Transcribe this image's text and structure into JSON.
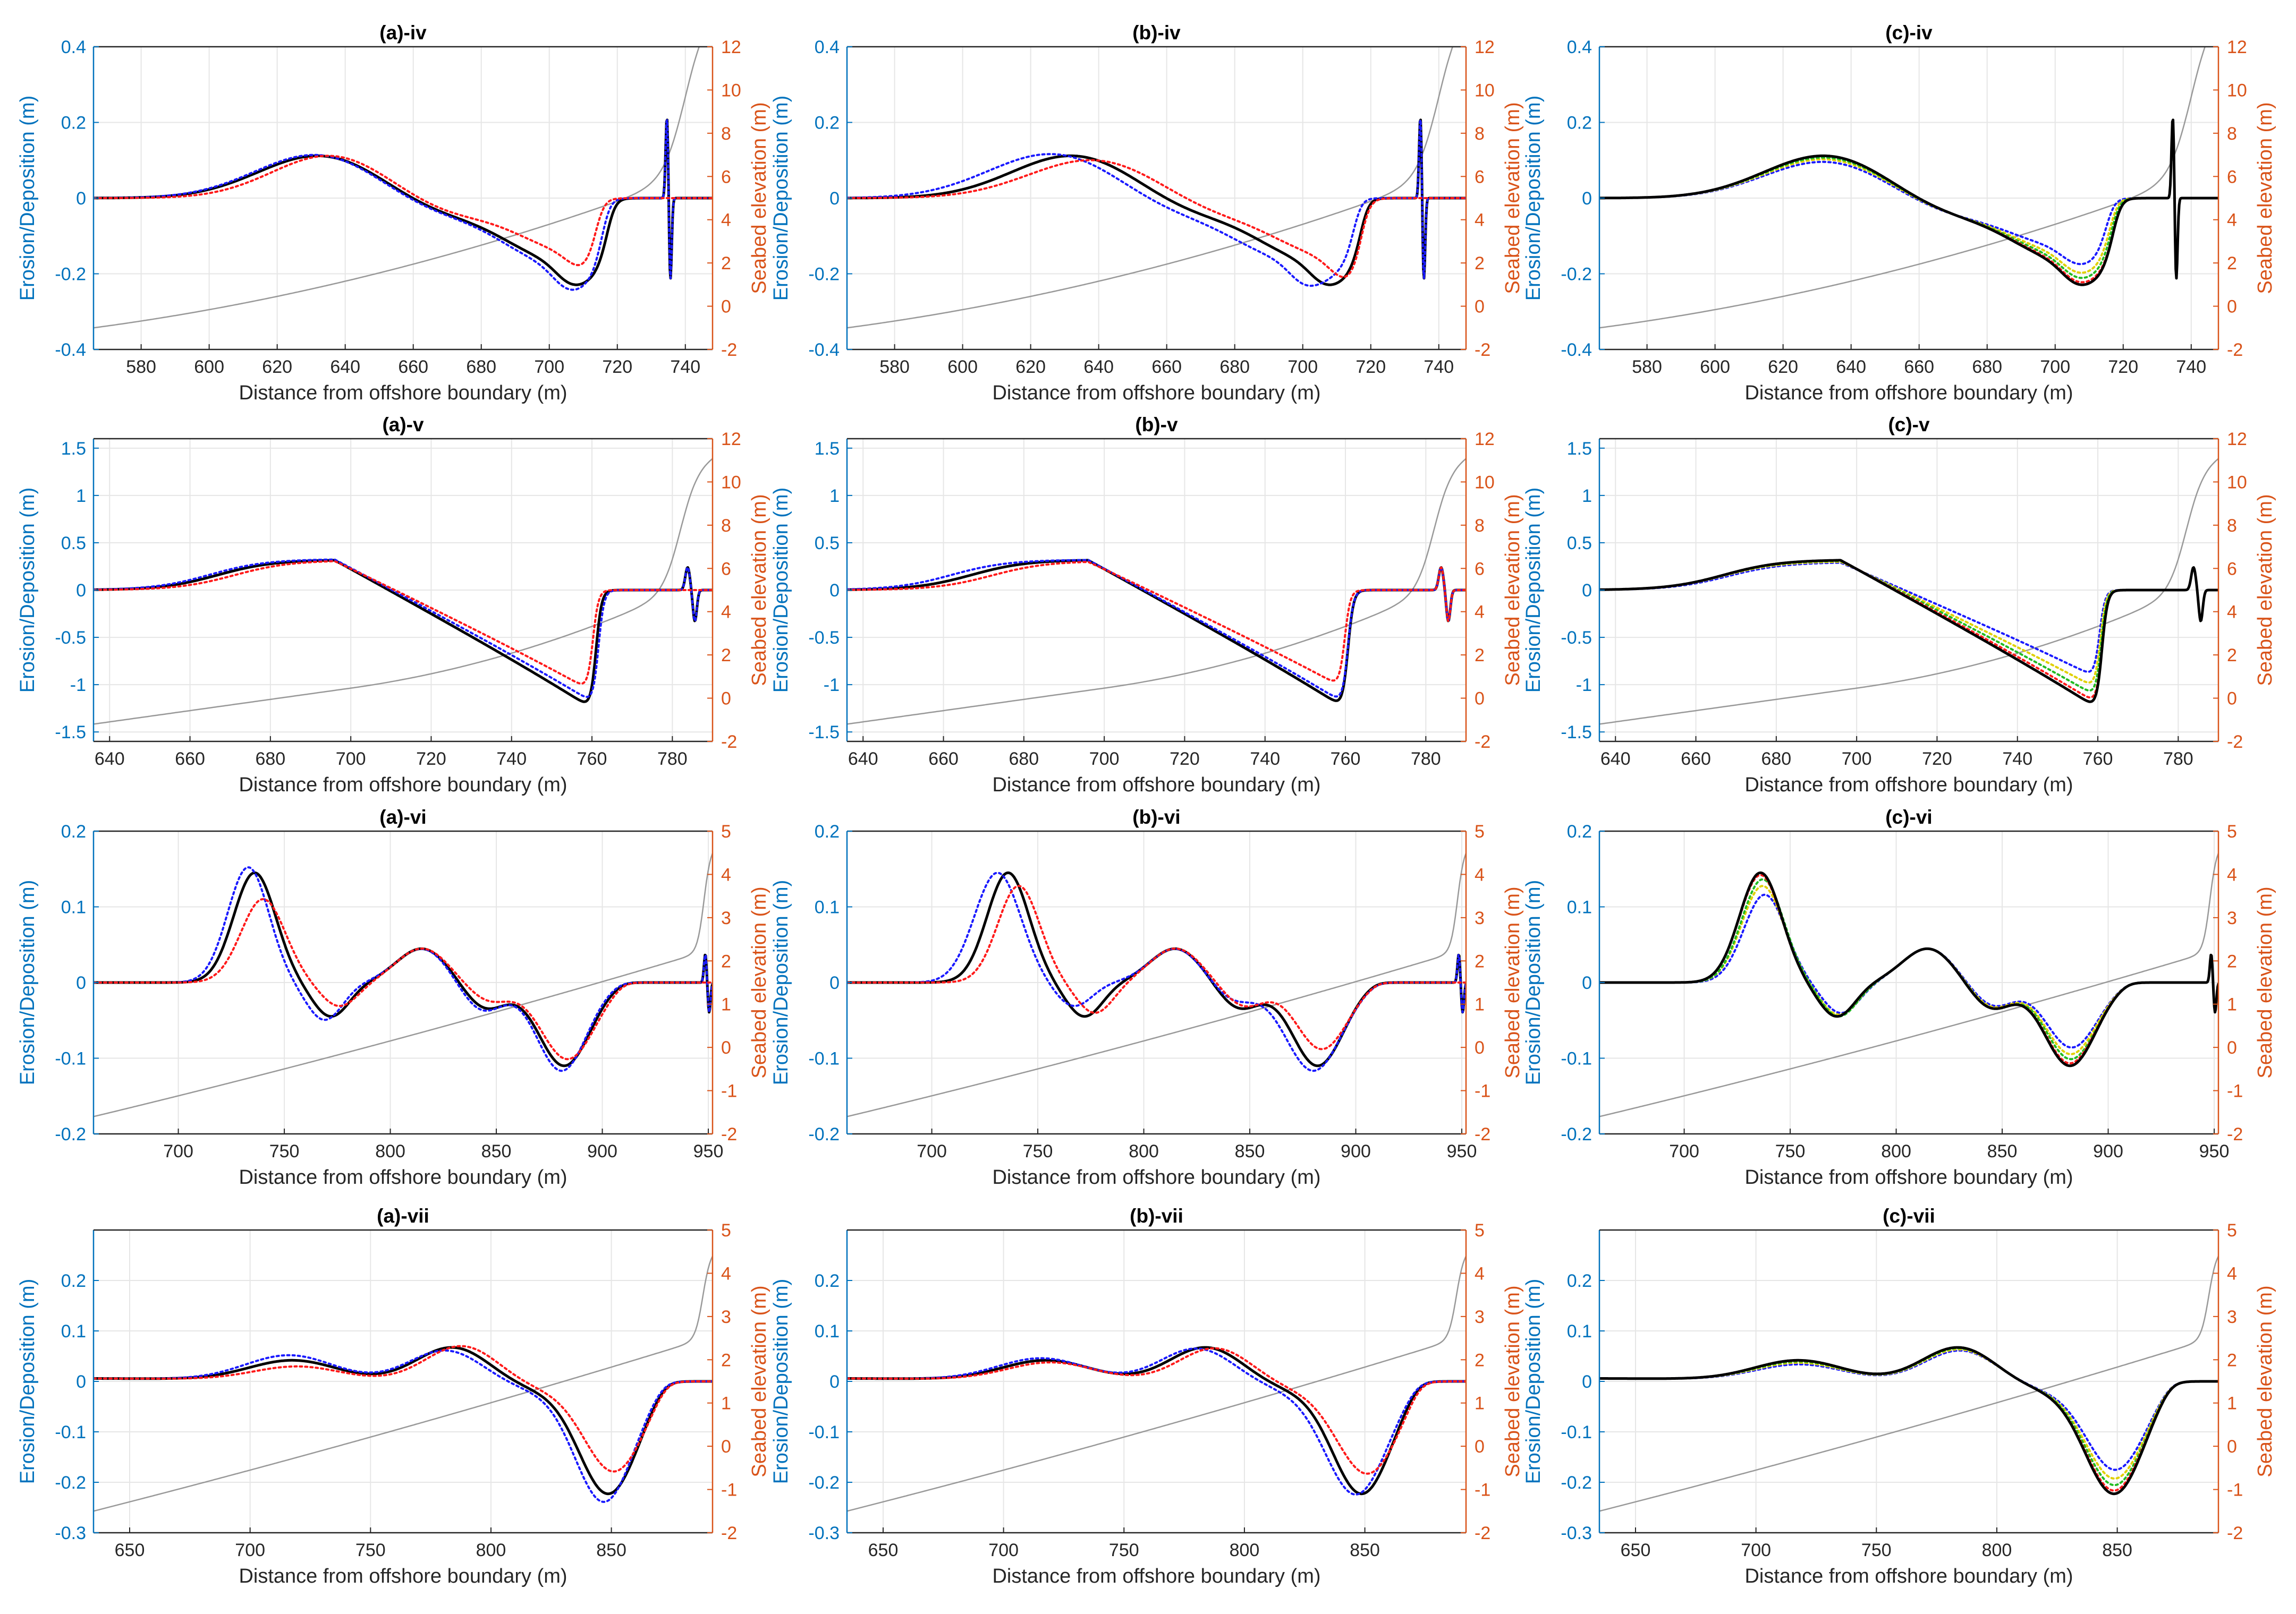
{
  "colors": {
    "left_axis": "#0072BD",
    "right_axis": "#D95319",
    "grid": "#e6e6e6",
    "seabed_line": "#999999",
    "black": "#000000",
    "blue": "#1a1aff",
    "red": "#ff1a1a",
    "green": "#22bb22",
    "yellow": "#e0d000"
  },
  "common": {
    "xlabel": "Distance from offshore boundary (m)",
    "ylabel_left": "Erosion/Deposition (m)",
    "ylabel_right": "Seabed elevation (m)"
  },
  "chart_data": [
    {
      "id": "a-iv",
      "type": "line",
      "title": "(a)-iv",
      "xlim": [
        566,
        748
      ],
      "ylim": [
        -0.4,
        0.4
      ],
      "y2lim": [
        -2,
        12
      ],
      "xticks": [
        580,
        600,
        620,
        640,
        660,
        680,
        700,
        720,
        740
      ],
      "yticks": [
        -0.4,
        -0.2,
        0,
        0.2,
        0.4
      ],
      "y2ticks": [
        -2,
        0,
        2,
        4,
        6,
        8,
        10,
        12
      ],
      "grid": true,
      "shape": "iv",
      "variant": "a"
    },
    {
      "id": "b-iv",
      "type": "line",
      "title": "(b)-iv",
      "xlim": [
        566,
        748
      ],
      "ylim": [
        -0.4,
        0.4
      ],
      "y2lim": [
        -2,
        12
      ],
      "xticks": [
        580,
        600,
        620,
        640,
        660,
        680,
        700,
        720,
        740
      ],
      "yticks": [
        -0.4,
        -0.2,
        0,
        0.2,
        0.4
      ],
      "y2ticks": [
        -2,
        0,
        2,
        4,
        6,
        8,
        10,
        12
      ],
      "grid": true,
      "shape": "iv",
      "variant": "b"
    },
    {
      "id": "c-iv",
      "type": "line",
      "title": "(c)-iv",
      "xlim": [
        566,
        748
      ],
      "ylim": [
        -0.4,
        0.4
      ],
      "y2lim": [
        -2,
        12
      ],
      "xticks": [
        580,
        600,
        620,
        640,
        660,
        680,
        700,
        720,
        740
      ],
      "yticks": [
        -0.4,
        -0.2,
        0,
        0.2,
        0.4
      ],
      "y2ticks": [
        -2,
        0,
        2,
        4,
        6,
        8,
        10,
        12
      ],
      "grid": true,
      "shape": "iv",
      "variant": "c"
    },
    {
      "id": "a-v",
      "type": "line",
      "title": "(a)-v",
      "xlim": [
        636,
        790
      ],
      "ylim": [
        -1.6,
        1.6
      ],
      "y2lim": [
        -2,
        12
      ],
      "xticks": [
        640,
        660,
        680,
        700,
        720,
        740,
        760,
        780
      ],
      "yticks": [
        -1.5,
        -1,
        -0.5,
        0,
        0.5,
        1,
        1.5
      ],
      "y2ticks": [
        -2,
        0,
        2,
        4,
        6,
        8,
        10,
        12
      ],
      "grid": true,
      "shape": "v",
      "variant": "a"
    },
    {
      "id": "b-v",
      "type": "line",
      "title": "(b)-v",
      "xlim": [
        636,
        790
      ],
      "ylim": [
        -1.6,
        1.6
      ],
      "y2lim": [
        -2,
        12
      ],
      "xticks": [
        640,
        660,
        680,
        700,
        720,
        740,
        760,
        780
      ],
      "yticks": [
        -1.5,
        -1,
        -0.5,
        0,
        0.5,
        1,
        1.5
      ],
      "y2ticks": [
        -2,
        0,
        2,
        4,
        6,
        8,
        10,
        12
      ],
      "grid": true,
      "shape": "v",
      "variant": "b"
    },
    {
      "id": "c-v",
      "type": "line",
      "title": "(c)-v",
      "xlim": [
        636,
        790
      ],
      "ylim": [
        -1.6,
        1.6
      ],
      "y2lim": [
        -2,
        12
      ],
      "xticks": [
        640,
        660,
        680,
        700,
        720,
        740,
        760,
        780
      ],
      "yticks": [
        -1.5,
        -1,
        -0.5,
        0,
        0.5,
        1,
        1.5
      ],
      "y2ticks": [
        -2,
        0,
        2,
        4,
        6,
        8,
        10,
        12
      ],
      "grid": true,
      "shape": "v",
      "variant": "c"
    },
    {
      "id": "a-vi",
      "type": "line",
      "title": "(a)-vi",
      "xlim": [
        660,
        952
      ],
      "ylim": [
        -0.2,
        0.2
      ],
      "y2lim": [
        -2,
        5
      ],
      "xticks": [
        700,
        750,
        800,
        850,
        900,
        950
      ],
      "yticks": [
        -0.2,
        -0.1,
        0,
        0.1,
        0.2
      ],
      "y2ticks": [
        -2,
        -1,
        0,
        1,
        2,
        3,
        4,
        5
      ],
      "grid": true,
      "shape": "vi",
      "variant": "a"
    },
    {
      "id": "b-vi",
      "type": "line",
      "title": "(b)-vi",
      "xlim": [
        660,
        952
      ],
      "ylim": [
        -0.2,
        0.2
      ],
      "y2lim": [
        -2,
        5
      ],
      "xticks": [
        700,
        750,
        800,
        850,
        900,
        950
      ],
      "yticks": [
        -0.2,
        -0.1,
        0,
        0.1,
        0.2
      ],
      "y2ticks": [
        -2,
        -1,
        0,
        1,
        2,
        3,
        4,
        5
      ],
      "grid": true,
      "shape": "vi",
      "variant": "b"
    },
    {
      "id": "c-vi",
      "type": "line",
      "title": "(c)-vi",
      "xlim": [
        660,
        952
      ],
      "ylim": [
        -0.2,
        0.2
      ],
      "y2lim": [
        -2,
        5
      ],
      "xticks": [
        700,
        750,
        800,
        850,
        900,
        950
      ],
      "yticks": [
        -0.2,
        -0.1,
        0,
        0.1,
        0.2
      ],
      "y2ticks": [
        -2,
        -1,
        0,
        1,
        2,
        3,
        4,
        5
      ],
      "grid": true,
      "shape": "vi",
      "variant": "c"
    },
    {
      "id": "a-vii",
      "type": "line",
      "title": "(a)-vii",
      "xlim": [
        635,
        892
      ],
      "ylim": [
        -0.3,
        0.3
      ],
      "y2lim": [
        -2,
        5
      ],
      "xticks": [
        650,
        700,
        750,
        800,
        850
      ],
      "yticks": [
        -0.3,
        -0.2,
        -0.1,
        0,
        0.1,
        0.2
      ],
      "y2ticks": [
        -2,
        -1,
        0,
        1,
        2,
        3,
        4,
        5
      ],
      "grid": true,
      "shape": "vii",
      "variant": "a"
    },
    {
      "id": "b-vii",
      "type": "line",
      "title": "(b)-vii",
      "xlim": [
        635,
        892
      ],
      "ylim": [
        -0.3,
        0.3
      ],
      "y2lim": [
        -2,
        5
      ],
      "xticks": [
        650,
        700,
        750,
        800,
        850
      ],
      "yticks": [
        -0.3,
        -0.2,
        -0.1,
        0,
        0.1,
        0.2
      ],
      "y2ticks": [
        -2,
        -1,
        0,
        1,
        2,
        3,
        4,
        5
      ],
      "grid": true,
      "shape": "vii",
      "variant": "b"
    },
    {
      "id": "c-vii",
      "type": "line",
      "title": "(c)-vii",
      "xlim": [
        635,
        892
      ],
      "ylim": [
        -0.3,
        0.3
      ],
      "y2lim": [
        -2,
        5
      ],
      "xticks": [
        650,
        700,
        750,
        800,
        850
      ],
      "yticks": [
        -0.3,
        -0.2,
        -0.1,
        0,
        0.1,
        0.2
      ],
      "y2ticks": [
        -2,
        -1,
        0,
        1,
        2,
        3,
        4,
        5
      ],
      "grid": true,
      "shape": "vii",
      "variant": "c"
    }
  ]
}
